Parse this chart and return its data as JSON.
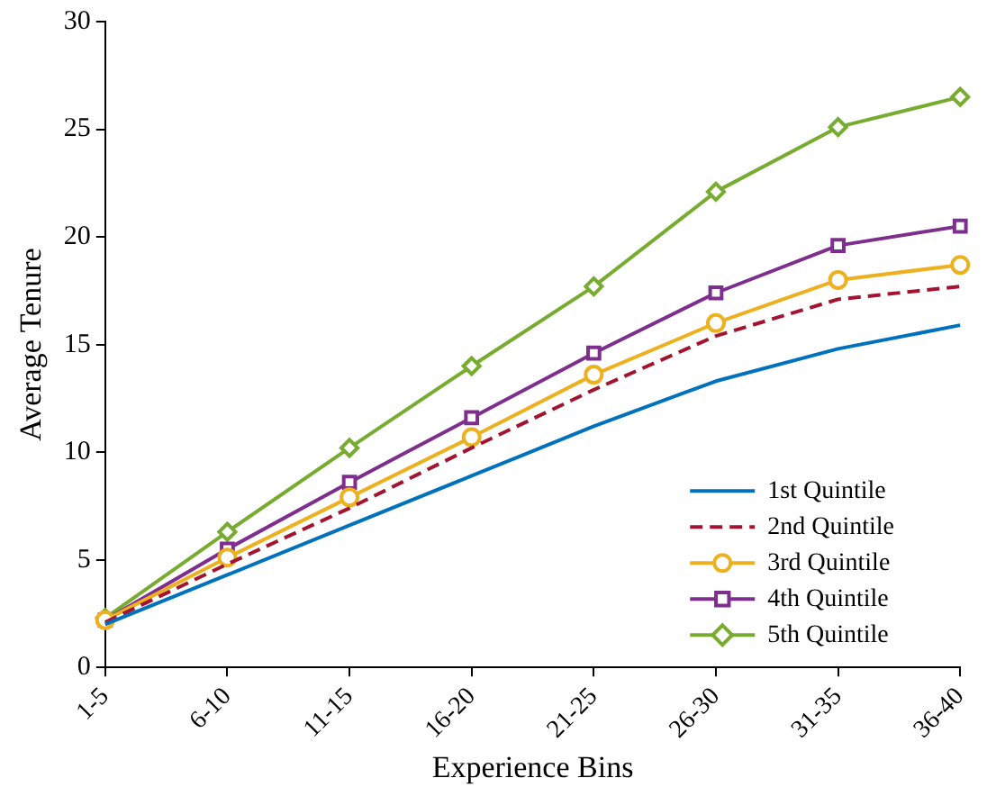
{
  "chart_data": {
    "type": "line",
    "xlabel": "Experience Bins",
    "ylabel": "Average Tenure",
    "categories": [
      "1-5",
      "6-10",
      "11-15",
      "16-20",
      "21-25",
      "26-30",
      "31-35",
      "36-40"
    ],
    "ylim": [
      0,
      30
    ],
    "yticks": [
      0,
      5,
      10,
      15,
      20,
      25,
      30
    ],
    "grid": false,
    "legend": "bottom right",
    "series": [
      {
        "name": "1st Quintile",
        "color": "#0072bd",
        "marker": "none",
        "line_style": "solid",
        "values": [
          2.0,
          4.3,
          6.6,
          8.9,
          11.2,
          13.3,
          14.8,
          15.9
        ]
      },
      {
        "name": "2nd Quintile",
        "color": "#a2142f",
        "marker": "none",
        "line_style": "dashed",
        "values": [
          2.1,
          4.8,
          7.4,
          10.2,
          12.9,
          15.4,
          17.1,
          17.7
        ]
      },
      {
        "name": "3rd Quintile",
        "color": "#edb120",
        "marker": "circle",
        "line_style": "solid",
        "values": [
          2.2,
          5.1,
          7.9,
          10.7,
          13.6,
          16.0,
          18.0,
          18.7
        ]
      },
      {
        "name": "4th Quintile",
        "color": "#7e2f8e",
        "marker": "square",
        "line_style": "solid",
        "values": [
          2.2,
          5.5,
          8.6,
          11.6,
          14.6,
          17.4,
          19.6,
          20.5
        ]
      },
      {
        "name": "5th Quintile",
        "color": "#77ac30",
        "marker": "diamond",
        "line_style": "solid",
        "values": [
          2.3,
          6.3,
          10.2,
          14.0,
          17.7,
          22.1,
          25.1,
          26.5
        ]
      }
    ]
  }
}
